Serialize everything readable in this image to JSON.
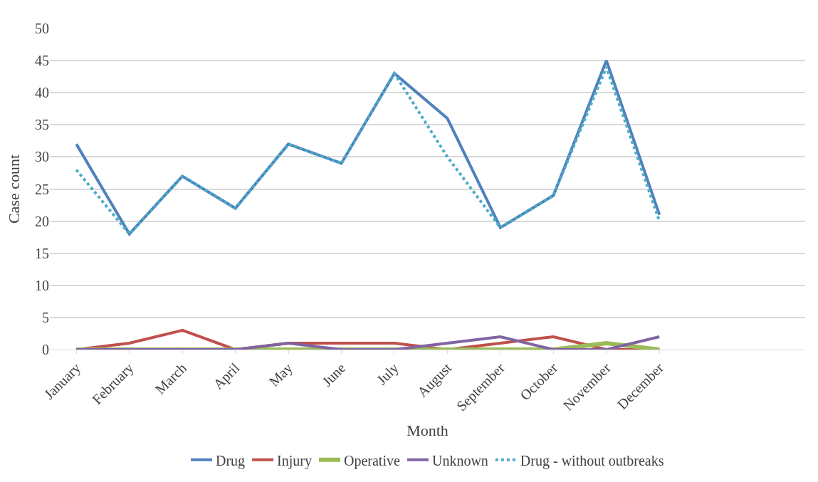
{
  "chart_data": {
    "type": "line",
    "xlabel": "Month",
    "ylabel": "Case count",
    "categories": [
      "January",
      "February",
      "March",
      "April",
      "May",
      "June",
      "July",
      "August",
      "September",
      "October",
      "November",
      "December"
    ],
    "series": [
      {
        "name": "Drug",
        "color": "#4f81bd",
        "values": [
          32,
          18,
          27,
          22,
          32,
          29,
          43,
          36,
          19,
          24,
          45,
          21
        ]
      },
      {
        "name": "Injury",
        "color": "#c0504d",
        "values": [
          0,
          1,
          3,
          0,
          1,
          1,
          1,
          0,
          1,
          2,
          0,
          0
        ]
      },
      {
        "name": "Operative",
        "color": "#9bbb59",
        "values": [
          0,
          0,
          0,
          0,
          0,
          0,
          0,
          0,
          0,
          0,
          1,
          0
        ]
      },
      {
        "name": "Unknown",
        "color": "#8064a2",
        "values": [
          0,
          0,
          0,
          0,
          1,
          0,
          0,
          1,
          2,
          0,
          0,
          2
        ]
      },
      {
        "name": "Drug - without outbreaks",
        "color": "#4bacc6",
        "line_style": "dotted",
        "values": [
          28,
          18,
          27,
          22,
          32,
          29,
          43,
          30,
          19,
          24,
          44,
          20
        ]
      }
    ],
    "ylim": [
      0,
      50
    ],
    "yticks": [
      0,
      5,
      10,
      15,
      20,
      25,
      30,
      35,
      40,
      45,
      50
    ],
    "grid": "y",
    "legend": "bottom",
    "marker": "none",
    "line_style": "solid"
  }
}
